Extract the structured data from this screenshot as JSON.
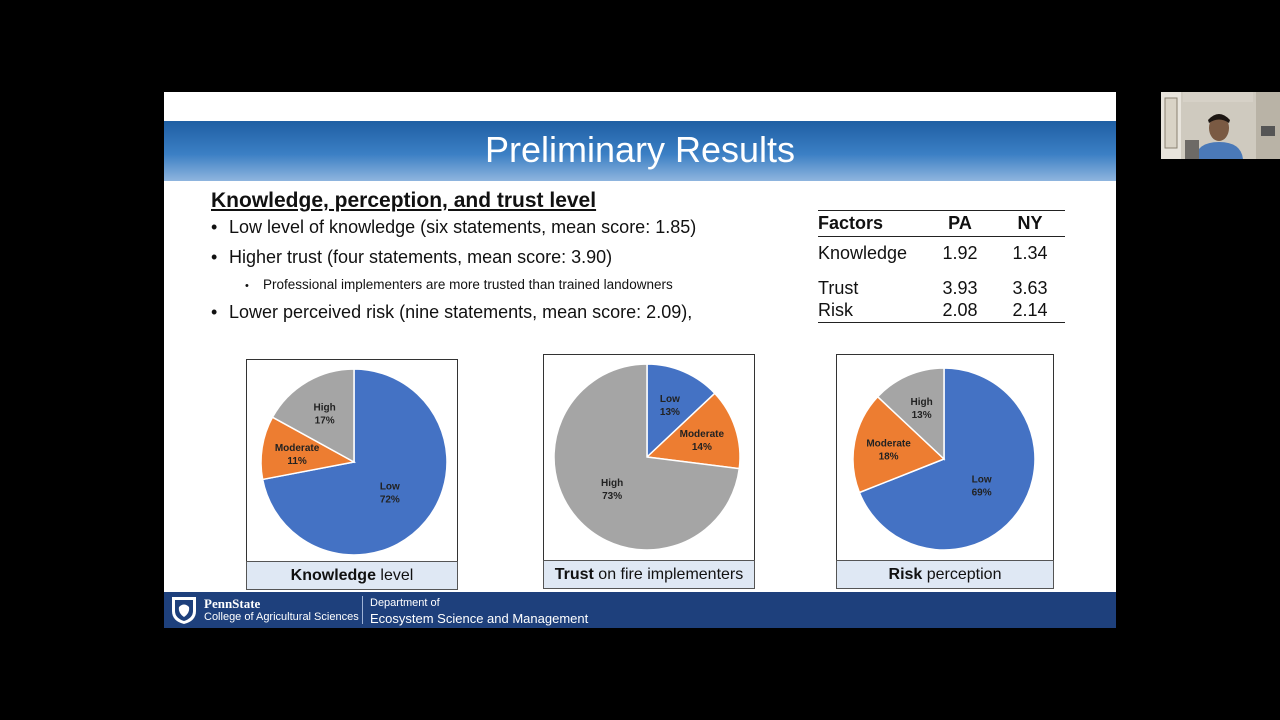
{
  "slide": {
    "title": "Preliminary Results",
    "heading": "Knowledge, perception, and trust level",
    "bullets": [
      "Low level of knowledge (six statements, mean score: 1.85)",
      "Higher trust (four statements, mean score: 3.90)",
      "Lower perceived risk (nine statements, mean score: 2.09),"
    ],
    "sub_bullet": "Professional implementers are more trusted than trained landowners",
    "bullet_symbol": "•"
  },
  "table": {
    "headers": [
      "Factors",
      "PA",
      "NY"
    ],
    "rows": [
      [
        "Knowledge",
        "1.92",
        "1.34"
      ],
      [
        "Trust",
        "3.93",
        "3.63"
      ],
      [
        "Risk",
        "2.08",
        "2.14"
      ]
    ]
  },
  "chart_data": [
    {
      "type": "pie",
      "caption_bold": "Knowledge",
      "caption_rest": " level",
      "slices": [
        {
          "label": "Low",
          "value": 72,
          "pct": "72%",
          "color": "#4472c4"
        },
        {
          "label": "Moderate",
          "value": 11,
          "pct": "11%",
          "color": "#ed7d31"
        },
        {
          "label": "High",
          "value": 17,
          "pct": "17%",
          "color": "#a5a5a5"
        }
      ]
    },
    {
      "type": "pie",
      "caption_bold": "Trust",
      "caption_rest": " on fire implementers",
      "slices": [
        {
          "label": "Low",
          "value": 13,
          "pct": "13%",
          "color": "#4472c4"
        },
        {
          "label": "Moderate",
          "value": 14,
          "pct": "14%",
          "color": "#ed7d31"
        },
        {
          "label": "High",
          "value": 73,
          "pct": "73%",
          "color": "#a5a5a5"
        }
      ]
    },
    {
      "type": "pie",
      "caption_bold": "Risk",
      "caption_rest": " perception",
      "slices": [
        {
          "label": "Low",
          "value": 69,
          "pct": "69%",
          "color": "#4472c4"
        },
        {
          "label": "Moderate",
          "value": 18,
          "pct": "18%",
          "color": "#ed7d31"
        },
        {
          "label": "High",
          "value": 13,
          "pct": "13%",
          "color": "#a5a5a5"
        }
      ]
    }
  ],
  "footer": {
    "university": "PennState",
    "college": "College of Agricultural Sciences",
    "dept_line1": "Department of",
    "dept_line2": "Ecosystem Science and Management",
    "color": "#1e407c"
  },
  "webcam": {
    "icon": "participant-video-icon"
  }
}
